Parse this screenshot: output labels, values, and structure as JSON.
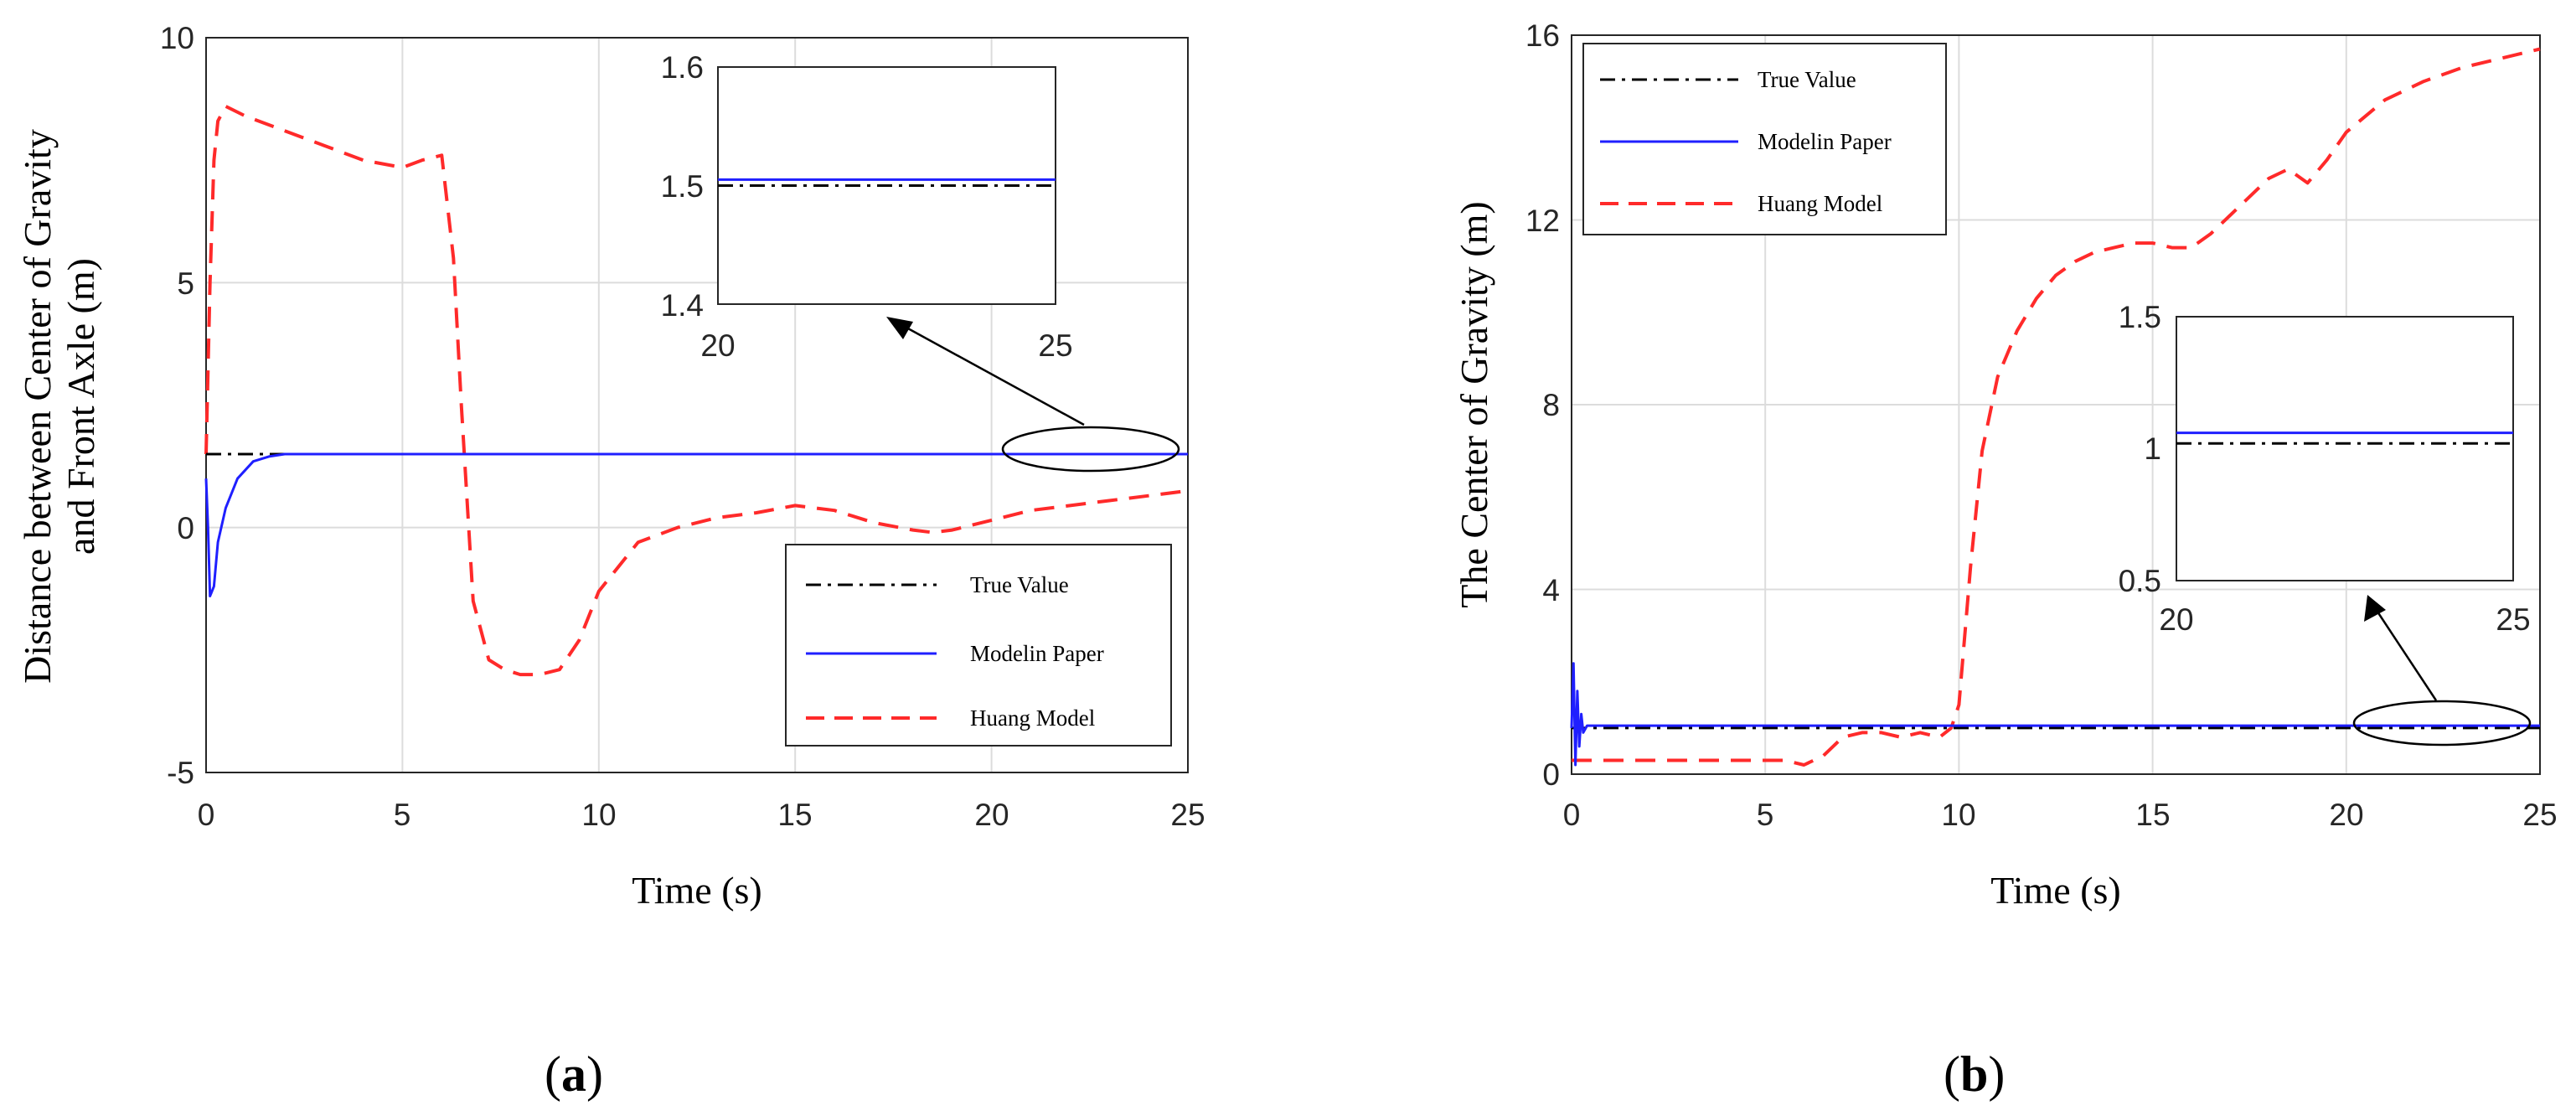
{
  "chart_data": [
    {
      "type": "line",
      "panel": "a",
      "caption_open": "(",
      "caption_letter": "a",
      "caption_close": ")",
      "xlabel": "Time (s)",
      "ylabel_line1": "Distance between Center of Gravity",
      "ylabel_line2": "and Front Axle (m)",
      "xlim": [
        0,
        25
      ],
      "ylim": [
        -5,
        10
      ],
      "xticks": [
        0,
        5,
        10,
        15,
        20,
        25
      ],
      "yticks": [
        -5,
        0,
        5,
        10
      ],
      "grid": true,
      "legend_position": "bottom-right",
      "series": [
        {
          "name": "True Value",
          "color": "#000000",
          "style": "dashdot",
          "x": [
            0,
            25
          ],
          "y": [
            1.5,
            1.5
          ]
        },
        {
          "name": "Modelin Paper",
          "color": "#1f1fff",
          "style": "solid",
          "x": [
            0,
            0.05,
            0.1,
            0.2,
            0.3,
            0.5,
            0.8,
            1.2,
            1.6,
            2,
            3,
            25
          ],
          "y": [
            1.0,
            0.0,
            -1.4,
            -1.2,
            -0.3,
            0.4,
            1.0,
            1.35,
            1.45,
            1.5,
            1.5,
            1.5
          ]
        },
        {
          "name": "Huang Model",
          "color": "#ff2a2a",
          "style": "dashed",
          "x": [
            0,
            0.1,
            0.2,
            0.3,
            0.5,
            1,
            2,
            3,
            4,
            5,
            5.5,
            6,
            6.3,
            6.5,
            6.8,
            7.2,
            7.6,
            8,
            8.5,
            9,
            9.5,
            10,
            11,
            12,
            13,
            14,
            15,
            16,
            17,
            18,
            18.5,
            19,
            20,
            21,
            22,
            23,
            24,
            25
          ],
          "y": [
            1.5,
            5.0,
            7.5,
            8.3,
            8.6,
            8.4,
            8.1,
            7.8,
            7.5,
            7.35,
            7.5,
            7.6,
            5.5,
            2.5,
            -1.5,
            -2.7,
            -2.9,
            -3.0,
            -3.0,
            -2.9,
            -2.3,
            -1.3,
            -0.3,
            0.0,
            0.2,
            0.3,
            0.45,
            0.35,
            0.1,
            -0.05,
            -0.1,
            -0.05,
            0.15,
            0.35,
            0.45,
            0.55,
            0.65,
            0.75
          ]
        }
      ],
      "inset": {
        "xlim": [
          20,
          25
        ],
        "ylim": [
          1.4,
          1.6
        ],
        "xticks": [
          20,
          25
        ],
        "ytick_labels": [
          "1.6",
          "1.5",
          "1.4"
        ],
        "true_value": 1.5,
        "model_value": 1.505
      }
    },
    {
      "type": "line",
      "panel": "b",
      "caption_open": "(",
      "caption_letter": "b",
      "caption_close": ")",
      "xlabel": "Time (s)",
      "ylabel": "The Center of Gravity (m)",
      "xlim": [
        0,
        25
      ],
      "ylim": [
        0,
        16
      ],
      "xticks": [
        0,
        5,
        10,
        15,
        20,
        25
      ],
      "yticks": [
        0,
        4,
        8,
        12,
        16
      ],
      "grid": true,
      "legend_position": "top-left",
      "series": [
        {
          "name": "True Value",
          "color": "#000000",
          "style": "dashdot",
          "x": [
            0,
            25
          ],
          "y": [
            1.0,
            1.0
          ]
        },
        {
          "name": "Modelin Paper",
          "color": "#1f1fff",
          "style": "solid",
          "x": [
            0,
            0.05,
            0.1,
            0.15,
            0.2,
            0.25,
            0.3,
            0.4,
            0.5,
            25
          ],
          "y": [
            1.0,
            2.4,
            0.2,
            1.8,
            0.6,
            1.3,
            0.9,
            1.05,
            1.05,
            1.05
          ]
        },
        {
          "name": "Huang Model",
          "color": "#ff2a2a",
          "style": "dashed",
          "x": [
            0,
            1,
            2,
            3,
            4,
            5,
            5.5,
            6,
            6.5,
            7,
            7.5,
            8,
            8.5,
            9,
            9.5,
            9.8,
            10,
            10.3,
            10.6,
            11,
            11.5,
            12,
            12.5,
            13,
            13.5,
            14,
            14.5,
            15,
            15.5,
            16,
            16.5,
            17,
            17.5,
            18,
            18.5,
            19,
            19.5,
            20,
            21,
            22,
            23,
            24,
            25
          ],
          "y": [
            0.3,
            0.3,
            0.3,
            0.3,
            0.3,
            0.3,
            0.3,
            0.2,
            0.4,
            0.8,
            0.9,
            0.9,
            0.8,
            0.9,
            0.8,
            1.0,
            1.5,
            4.5,
            7.0,
            8.6,
            9.6,
            10.3,
            10.8,
            11.1,
            11.3,
            11.4,
            11.5,
            11.5,
            11.4,
            11.4,
            11.7,
            12.1,
            12.5,
            12.9,
            13.1,
            12.8,
            13.3,
            13.9,
            14.6,
            15.0,
            15.3,
            15.5,
            15.7
          ]
        }
      ],
      "inset": {
        "xlim": [
          20,
          25
        ],
        "ylim": [
          0.5,
          1.5
        ],
        "xticks": [
          20,
          25
        ],
        "ytick_labels": [
          "1.5",
          "1",
          "0.5"
        ],
        "true_value": 1.02,
        "model_value": 1.06
      }
    }
  ],
  "tick_text": {
    "a_x": [
      "0",
      "5",
      "10",
      "15",
      "20",
      "25"
    ],
    "a_y": [
      "10",
      "5",
      "0",
      "-5"
    ],
    "a_inset_x": [
      "20",
      "25"
    ],
    "b_x": [
      "0",
      "5",
      "10",
      "15",
      "20",
      "25"
    ],
    "b_y": [
      "16",
      "12",
      "8",
      "4",
      "0"
    ],
    "b_inset_x": [
      "20",
      "25"
    ]
  }
}
